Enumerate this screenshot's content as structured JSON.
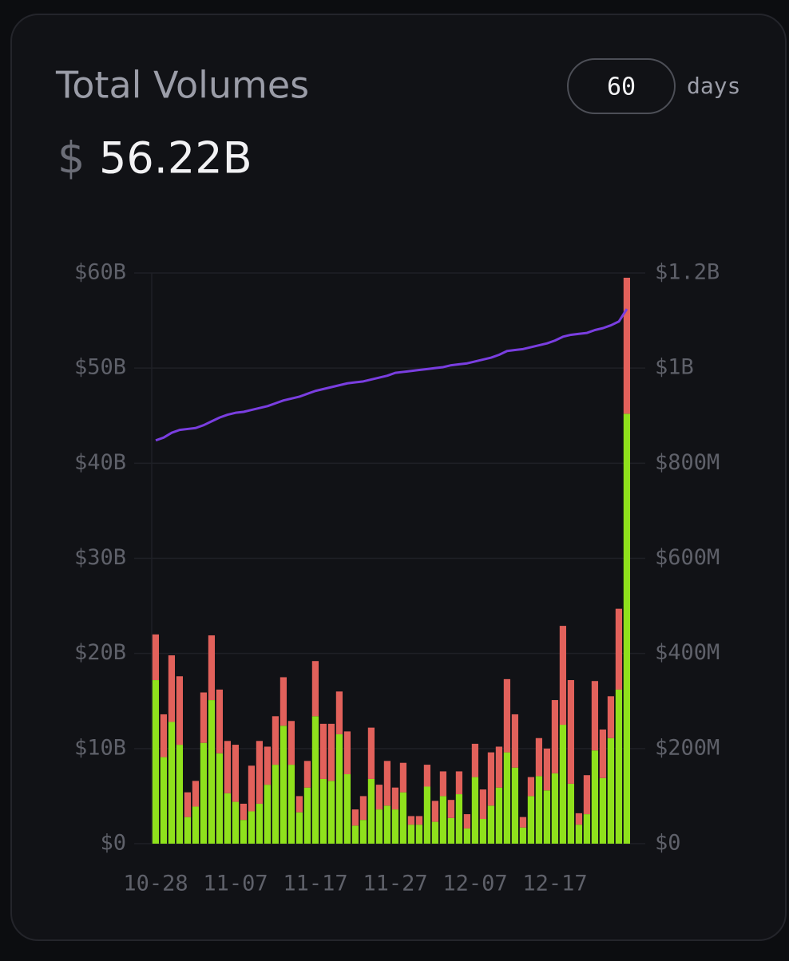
{
  "header": {
    "title": "Total Volumes",
    "currency": "$",
    "total": "56.22B",
    "days_value": 60,
    "days_label": "days"
  },
  "chart_data": {
    "type": "bar-line",
    "categories": [
      "10-28",
      null,
      null,
      null,
      null,
      null,
      null,
      null,
      null,
      null,
      "11-07",
      null,
      null,
      null,
      null,
      null,
      null,
      null,
      null,
      null,
      "11-17",
      null,
      null,
      null,
      null,
      null,
      null,
      null,
      null,
      null,
      "11-27",
      null,
      null,
      null,
      null,
      null,
      null,
      null,
      null,
      null,
      "12-07",
      null,
      null,
      null,
      null,
      null,
      null,
      null,
      null,
      null,
      "12-17",
      null,
      null,
      null,
      null,
      null,
      null,
      null,
      null,
      null
    ],
    "series": [
      {
        "type": "bar",
        "axis": "y2",
        "color": "#8fe11c",
        "values": [
          344,
          182,
          256,
          208,
          56,
          78,
          212,
          302,
          190,
          106,
          88,
          50,
          68,
          84,
          124,
          166,
          248,
          166,
          66,
          118,
          268,
          136,
          132,
          230,
          146,
          38,
          50,
          136,
          72,
          80,
          72,
          108,
          40,
          40,
          120,
          46,
          100,
          54,
          104,
          32,
          140,
          52,
          80,
          118,
          192,
          160,
          34,
          100,
          142,
          112,
          148,
          250,
          126,
          40,
          62,
          196,
          138,
          222,
          324,
          904
        ]
      },
      {
        "type": "bar",
        "axis": "y2",
        "color": "#e2615b",
        "values": [
          96,
          90,
          140,
          144,
          52,
          54,
          106,
          136,
          134,
          110,
          120,
          34,
          96,
          132,
          80,
          102,
          102,
          92,
          34,
          56,
          116,
          116,
          120,
          90,
          90,
          34,
          50,
          108,
          52,
          94,
          46,
          62,
          18,
          18,
          46,
          44,
          52,
          38,
          48,
          30,
          70,
          62,
          112,
          86,
          154,
          112,
          22,
          40,
          80,
          88,
          154,
          208,
          218,
          24,
          82,
          146,
          102,
          88,
          170,
          286
        ]
      },
      {
        "type": "line",
        "axis": "y",
        "color": "#7a3ee0",
        "values": [
          42.4,
          42.7,
          43.2,
          43.5,
          43.6,
          43.7,
          44.0,
          44.4,
          44.8,
          45.1,
          45.3,
          45.4,
          45.6,
          45.8,
          46.0,
          46.3,
          46.6,
          46.8,
          47.0,
          47.3,
          47.6,
          47.8,
          48.0,
          48.2,
          48.4,
          48.5,
          48.6,
          48.8,
          49.0,
          49.2,
          49.5,
          49.6,
          49.7,
          49.8,
          49.9,
          50.0,
          50.1,
          50.3,
          50.4,
          50.5,
          50.7,
          50.9,
          51.1,
          51.4,
          51.8,
          51.9,
          52.0,
          52.2,
          52.4,
          52.6,
          52.9,
          53.3,
          53.5,
          53.6,
          53.7,
          54.0,
          54.2,
          54.5,
          54.9,
          56.22
        ]
      }
    ],
    "ylim": [
      0,
      60
    ],
    "yticks": [
      {
        "value": 0,
        "label": "$0"
      },
      {
        "value": 10,
        "label": "$10B"
      },
      {
        "value": 20,
        "label": "$20B"
      },
      {
        "value": 30,
        "label": "$30B"
      },
      {
        "value": 40,
        "label": "$40B"
      },
      {
        "value": 50,
        "label": "$50B"
      },
      {
        "value": 60,
        "label": "$60B"
      }
    ],
    "y2lim": [
      0,
      1200
    ],
    "y2ticks": [
      {
        "value": 0,
        "label": "$0"
      },
      {
        "value": 200,
        "label": "$200M"
      },
      {
        "value": 400,
        "label": "$400M"
      },
      {
        "value": 600,
        "label": "$600M"
      },
      {
        "value": 800,
        "label": "$800M"
      },
      {
        "value": 1000,
        "label": "$1B"
      },
      {
        "value": 1200,
        "label": "$1.2B"
      }
    ],
    "grid": true
  }
}
